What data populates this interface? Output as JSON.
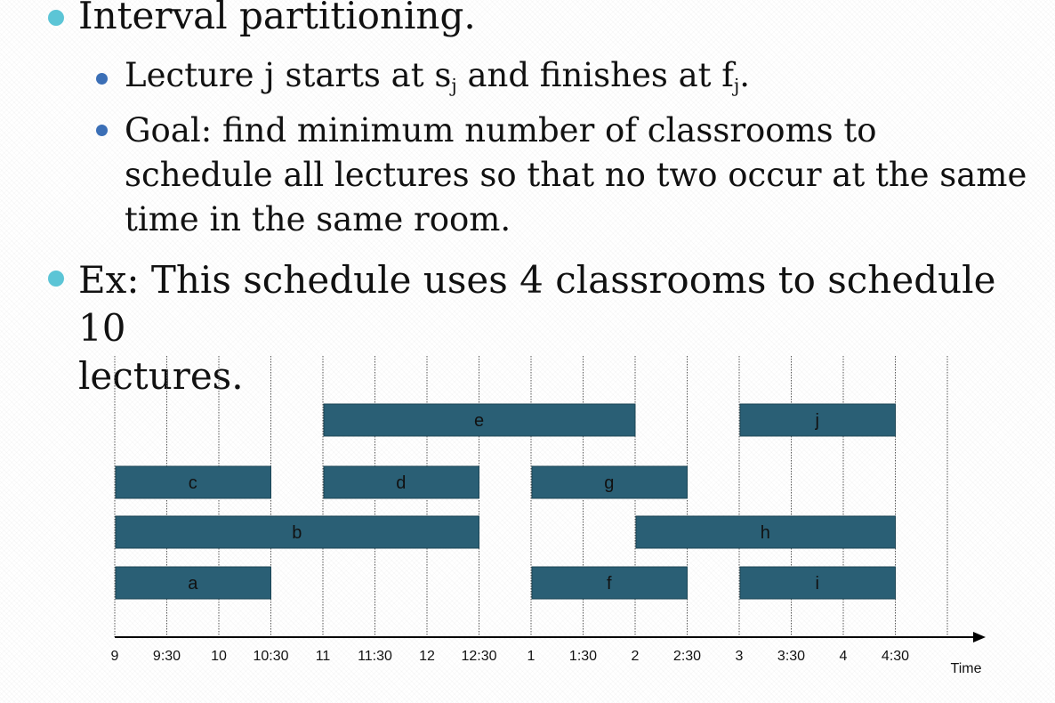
{
  "bullets": {
    "b1": {
      "text": "Interval partitioning."
    },
    "b1a": {
      "t1": "Lecture j starts at s",
      "s1": "j",
      "t2": " and finishes at f",
      "s2": "j",
      "t3": "."
    },
    "b1b": {
      "line1": "Goal:  find minimum number of classrooms to",
      "line2": "schedule all lectures so that no two occur at the same",
      "line3": "time in the same room."
    },
    "b2": {
      "line1": "Ex:  This schedule uses 4 classrooms to schedule 10",
      "line2": "lectures."
    }
  },
  "colors": {
    "bar": "#2a5f75",
    "bullet_l1": "#5cc5d6",
    "bullet_l2": "#3b6fb6"
  },
  "chart_data": {
    "type": "timeline",
    "xlabel": "Time",
    "ticks": [
      "9",
      "9:30",
      "10",
      "10:30",
      "11",
      "11:30",
      "12",
      "12:30",
      "1",
      "1:30",
      "2",
      "2:30",
      "3",
      "3:30",
      "4",
      "4:30"
    ],
    "lectures": [
      {
        "label": "e",
        "start": 4,
        "end": 10,
        "row": 0
      },
      {
        "label": "j",
        "start": 12,
        "end": 15,
        "row": 0
      },
      {
        "label": "c",
        "start": 0,
        "end": 3,
        "row": 1
      },
      {
        "label": "d",
        "start": 4,
        "end": 7,
        "row": 1
      },
      {
        "label": "g",
        "start": 8,
        "end": 11,
        "row": 1
      },
      {
        "label": "b",
        "start": 0,
        "end": 7,
        "row": 2
      },
      {
        "label": "h",
        "start": 10,
        "end": 15,
        "row": 2
      },
      {
        "label": "a",
        "start": 0,
        "end": 3,
        "row": 3
      },
      {
        "label": "f",
        "start": 8,
        "end": 11,
        "row": 3
      },
      {
        "label": "i",
        "start": 12,
        "end": 15,
        "row": 3
      }
    ]
  }
}
